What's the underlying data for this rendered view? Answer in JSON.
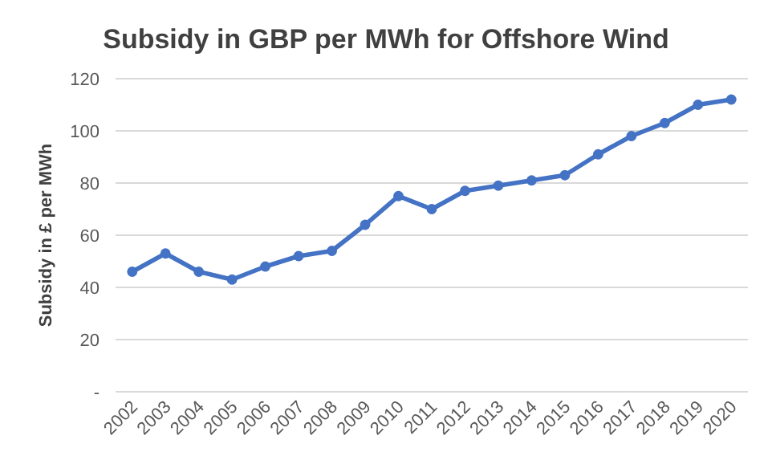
{
  "chart_data": {
    "type": "line",
    "title": "Subsidy in GBP per MWh for Offshore Wind",
    "ylabel": "Subsidy in £ per MWh",
    "categories": [
      "2002",
      "2003",
      "2004",
      "2005",
      "2006",
      "2007",
      "2008",
      "2009",
      "2010",
      "2011",
      "2012",
      "2013",
      "2014",
      "2015",
      "2016",
      "2017",
      "2018",
      "2019",
      "2020"
    ],
    "series": [
      {
        "color": "#4472c4",
        "values": [
          46,
          53,
          46,
          43,
          48,
          52,
          54,
          64,
          75,
          70,
          77,
          79,
          81,
          83,
          91,
          98,
          103,
          110,
          112
        ]
      }
    ],
    "ylim": [
      0,
      120
    ],
    "yticks": [
      {
        "value": 0,
        "label": "-"
      },
      20,
      40,
      60,
      80,
      100,
      120
    ],
    "grid": "y",
    "marker": "circle",
    "line_style": "solid"
  }
}
